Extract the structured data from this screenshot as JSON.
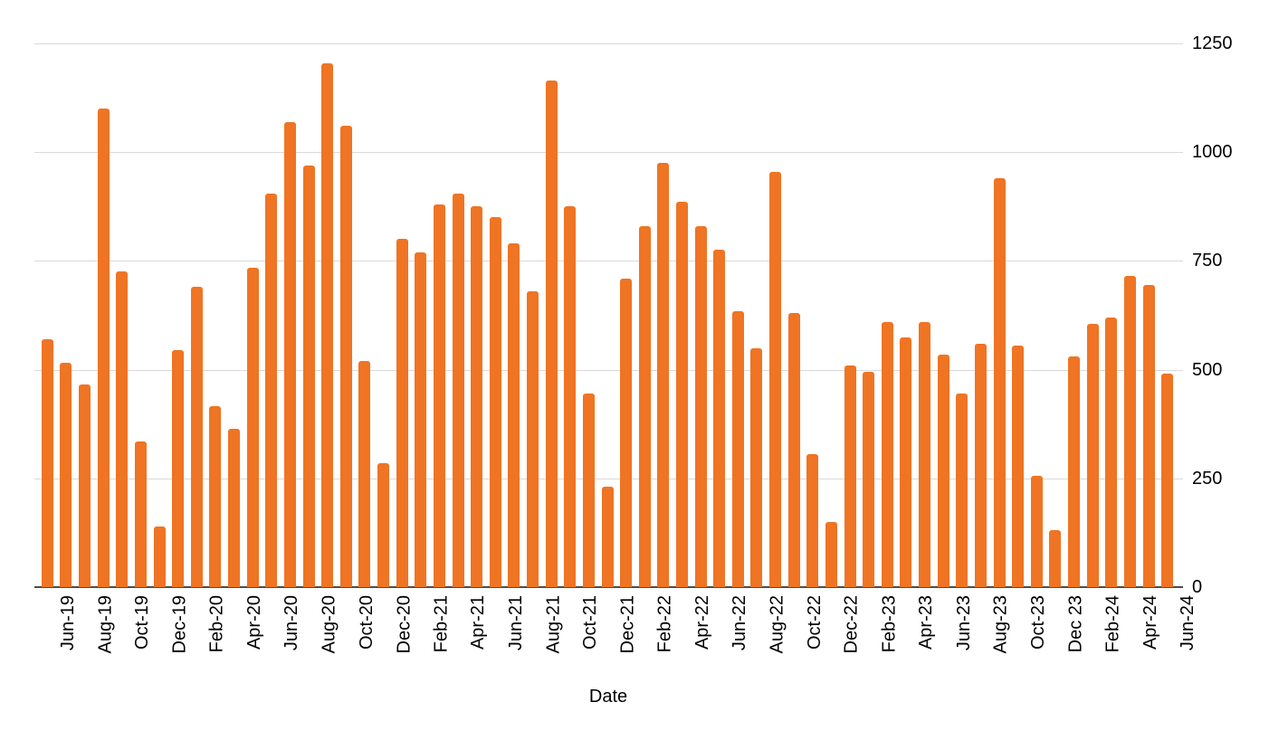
{
  "chart_data": {
    "type": "bar",
    "title": "",
    "xlabel": "Date",
    "ylabel": "",
    "x": [
      "Jun-19",
      "Jul-19",
      "Aug-19",
      "Sep-19",
      "Oct-19",
      "Nov-19",
      "Dec-19",
      "Jan-20",
      "Feb-20",
      "Mar-20",
      "Apr-20",
      "May-20",
      "Jun-20",
      "Jul-20",
      "Aug-20",
      "Sep-20",
      "Oct-20",
      "Nov-20",
      "Dec-20",
      "Jan-21",
      "Feb-21",
      "Mar-21",
      "Apr-21",
      "May-21",
      "Jun-21",
      "Jul-21",
      "Aug-21",
      "Sep-21",
      "Oct-21",
      "Nov-21",
      "Dec-21",
      "Jan-22",
      "Feb-22",
      "Mar-22",
      "Apr-22",
      "May-22",
      "Jun-22",
      "Jul-22",
      "Aug-22",
      "Sep-22",
      "Oct-22",
      "Nov-22",
      "Dec-22",
      "Jan-23",
      "Feb-23",
      "Mar-23",
      "Apr-23",
      "May-23",
      "Jun-23",
      "Jul-23",
      "Aug-23",
      "Sep-23",
      "Oct-23",
      "Nov-23",
      "Dec 23",
      "Jan-24",
      "Feb-24",
      "Mar-24",
      "Apr-24",
      "May-24",
      "Jun-24"
    ],
    "values": [
      570,
      515,
      465,
      1100,
      725,
      335,
      140,
      545,
      690,
      415,
      365,
      735,
      905,
      1070,
      970,
      1205,
      1060,
      520,
      285,
      800,
      770,
      880,
      905,
      875,
      850,
      790,
      680,
      1165,
      875,
      445,
      230,
      710,
      830,
      975,
      885,
      830,
      775,
      635,
      550,
      955,
      630,
      305,
      150,
      510,
      495,
      610,
      575,
      610,
      535,
      445,
      560,
      940,
      555,
      255,
      130,
      530,
      605,
      620,
      715,
      695,
      490
    ],
    "visible_x_tick_labels": [
      "Jun-19",
      "Aug-19",
      "Oct-19",
      "Dec-19",
      "Feb-20",
      "Apr-20",
      "Jun-20",
      "Aug-20",
      "Oct-20",
      "Dec-20",
      "Feb-21",
      "Apr-21",
      "Jun-21",
      "Aug-21",
      "Oct-21",
      "Dec-21",
      "Feb-22",
      "Apr-22",
      "Jun-22",
      "Aug-22",
      "Oct-22",
      "Dec-22",
      "Feb-23",
      "Apr-23",
      "Jun-23",
      "Aug-23",
      "Oct-23",
      "Dec 23",
      "Feb-24",
      "Apr-24",
      "Jun-24"
    ],
    "x_tick_every": 2,
    "yticks": [
      0,
      250,
      500,
      750,
      1000,
      1250
    ],
    "ylim": [
      0,
      1250
    ],
    "y_axis_side": "right",
    "x_tick_label_rotation_degrees": -90,
    "grid": true,
    "legend": "none",
    "bar_color": "#EF7423",
    "gridline_color": "#D9D9D9",
    "axis_line_color": "#4D4D4D",
    "text_color": "#000000"
  }
}
